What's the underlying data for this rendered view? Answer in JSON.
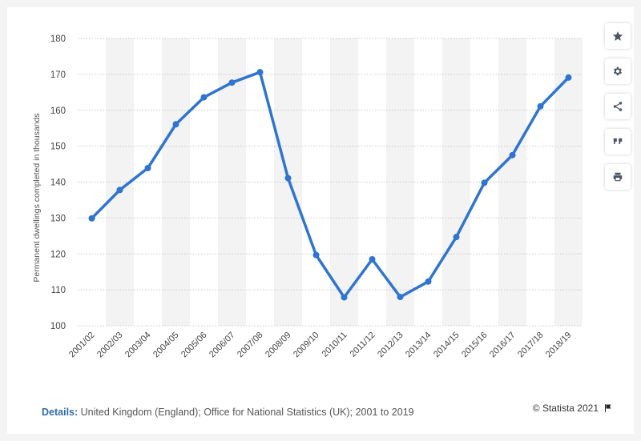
{
  "chart_data": {
    "type": "line",
    "categories": [
      "2001/02",
      "2002/03",
      "2003/04",
      "2004/05",
      "2005/06",
      "2006/07",
      "2007/08",
      "2008/09",
      "2009/10",
      "2010/11",
      "2011/12",
      "2012/13",
      "2013/14",
      "2014/15",
      "2015/16",
      "2016/17",
      "2017/18",
      "2018/19"
    ],
    "series": [
      {
        "values": [
          129.9,
          137.8,
          143.9,
          156.1,
          163.6,
          167.7,
          170.6,
          141.1,
          119.7,
          107.9,
          118.5,
          108.0,
          112.3,
          124.7,
          139.8,
          147.5,
          161.1,
          169.1
        ]
      }
    ],
    "ylabel": "Permanent dwellings completed in thousands",
    "ylim": [
      100,
      180
    ],
    "yticks": [
      100,
      110,
      120,
      130,
      140,
      150,
      160,
      170,
      180
    ],
    "grid": true,
    "line_color": "#2f74d0",
    "band_color": "#f3f3f3"
  },
  "footer": {
    "details_label": "Details:",
    "details_text": "United Kingdom (England); Office for National Statistics (UK); 2001 to 2019",
    "copyright": "© Statista 2021"
  },
  "toolbar": {
    "icons": [
      "star-icon",
      "gear-icon",
      "share-icon",
      "quote-icon",
      "print-icon"
    ]
  }
}
